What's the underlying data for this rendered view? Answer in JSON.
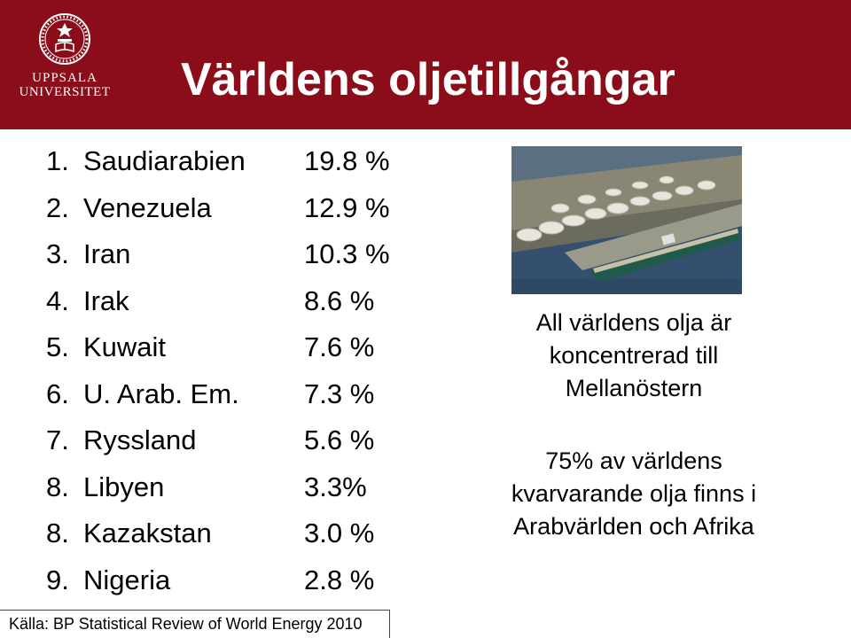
{
  "header": {
    "title": "Världens oljetillgångar",
    "logo_line1": "UPPSALA",
    "logo_line2": "UNIVERSITET",
    "background_color": "#8b0d1a"
  },
  "reserves": [
    {
      "rank": "1.",
      "country": "Saudiarabien",
      "share": "19.8 %"
    },
    {
      "rank": "2.",
      "country": "Venezuela",
      "share": "12.9 %"
    },
    {
      "rank": "3.",
      "country": "Iran",
      "share": "10.3 %"
    },
    {
      "rank": "4.",
      "country": "Irak",
      "share": "8.6 %"
    },
    {
      "rank": "5.",
      "country": "Kuwait",
      "share": "7.6 %"
    },
    {
      "rank": "6.",
      "country": "U. Arab. Em.",
      "share": "7.3 %"
    },
    {
      "rank": "7.",
      "country": "Ryssland",
      "share": "5.6 %"
    },
    {
      "rank": "8.",
      "country": "Libyen",
      "share": "3.3%"
    },
    {
      "rank": "8.",
      "country": "Kazakstan",
      "share": "3.0 %"
    },
    {
      "rank": "9.",
      "country": "Nigeria",
      "share": "2.8 %"
    }
  ],
  "notes": {
    "first": "All världens olja är koncentrerad till Mellanöstern",
    "second": "75% av världens kvarvarande olja finns i Arabvärlden och Afrika"
  },
  "source": "Källa: BP Statistical Review of World Energy 2010",
  "photo": {
    "icon": "oil-terminal-tanker-photo"
  }
}
